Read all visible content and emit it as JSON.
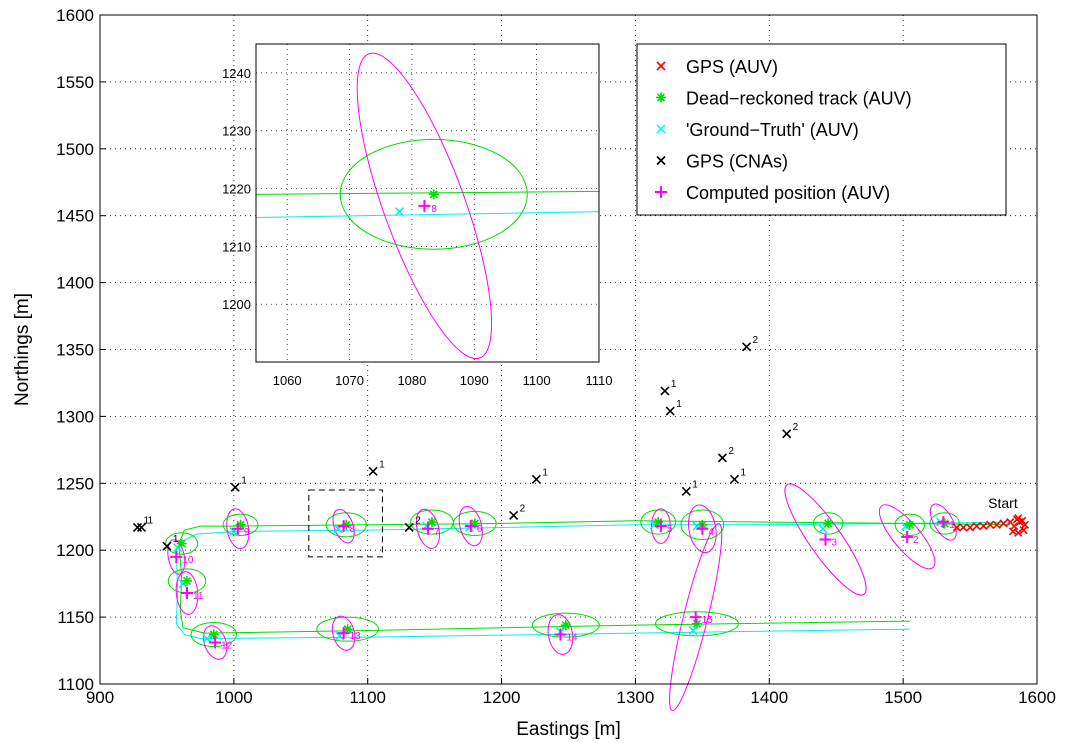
{
  "chart_data": {
    "type": "scatter",
    "title": "",
    "xlabel": "Eastings [m]",
    "ylabel": "Northings [m]",
    "xlim": [
      900,
      1600
    ],
    "ylim": [
      1100,
      1600
    ],
    "xticks": [
      900,
      1000,
      1100,
      1200,
      1300,
      1400,
      1500,
      1600
    ],
    "yticks": [
      1100,
      1150,
      1200,
      1250,
      1300,
      1350,
      1400,
      1450,
      1500,
      1550,
      1600
    ],
    "grid": true,
    "legend_position": "top-right",
    "legend": [
      {
        "label": "GPS (AUV)",
        "marker": "x",
        "color": "#ff0000"
      },
      {
        "label": "Dead−reckoned track (AUV)",
        "marker": "asterisk",
        "color": "#00dd00"
      },
      {
        "label": "'Ground−Truth' (AUV)",
        "marker": "x",
        "color": "#00ffff"
      },
      {
        "label": "GPS (CNAs)",
        "marker": "x",
        "color": "#000000"
      },
      {
        "label": "Computed position (AUV)",
        "marker": "+",
        "color": "#ff00ff"
      }
    ],
    "start_label": "Start",
    "start_point": [
      1588,
      1218
    ],
    "gps_auv": [
      [
        1586,
        1224
      ],
      [
        1589,
        1222
      ],
      [
        1591,
        1219
      ],
      [
        1590,
        1215
      ],
      [
        1586,
        1213
      ],
      [
        1582,
        1214
      ],
      [
        1583,
        1218
      ],
      [
        1587,
        1221
      ],
      [
        1585,
        1223
      ],
      [
        1580,
        1221
      ],
      [
        1575,
        1220
      ],
      [
        1570,
        1219
      ],
      [
        1565,
        1219
      ],
      [
        1560,
        1218
      ],
      [
        1555,
        1218
      ],
      [
        1550,
        1217
      ],
      [
        1545,
        1217
      ],
      [
        1540,
        1217
      ]
    ],
    "dead_reckoned_track": [
      [
        1580,
        1219
      ],
      [
        1500,
        1220
      ],
      [
        1400,
        1221
      ],
      [
        1300,
        1222
      ],
      [
        1200,
        1220
      ],
      [
        1100,
        1219
      ],
      [
        1000,
        1218
      ],
      [
        975,
        1218
      ],
      [
        963,
        1215
      ],
      [
        959,
        1205
      ],
      [
        961,
        1180
      ],
      [
        960,
        1155
      ],
      [
        962,
        1142
      ],
      [
        978,
        1138
      ],
      [
        1100,
        1140
      ],
      [
        1300,
        1144
      ],
      [
        1505,
        1147
      ]
    ],
    "ground_truth_track": [
      [
        1580,
        1221
      ],
      [
        1500,
        1220
      ],
      [
        1400,
        1219
      ],
      [
        1300,
        1219
      ],
      [
        1200,
        1217
      ],
      [
        1100,
        1215
      ],
      [
        1000,
        1214
      ],
      [
        972,
        1212
      ],
      [
        960,
        1206
      ],
      [
        957,
        1200
      ],
      [
        958,
        1170
      ],
      [
        957,
        1145
      ],
      [
        963,
        1137
      ],
      [
        975,
        1134
      ],
      [
        1100,
        1135
      ],
      [
        1300,
        1138
      ],
      [
        1505,
        1141
      ]
    ],
    "dead_reckoned_points": [
      {
        "x": 1531,
        "y": 1220
      },
      {
        "x": 1505,
        "y": 1219
      },
      {
        "x": 1444,
        "y": 1220
      },
      {
        "x": 1350,
        "y": 1219
      },
      {
        "x": 1317,
        "y": 1221
      },
      {
        "x": 1180,
        "y": 1220
      },
      {
        "x": 1148,
        "y": 1221
      },
      {
        "x": 1084,
        "y": 1219
      },
      {
        "x": 1005,
        "y": 1219
      },
      {
        "x": 961,
        "y": 1205
      },
      {
        "x": 965,
        "y": 1177
      },
      {
        "x": 985,
        "y": 1137
      },
      {
        "x": 1085,
        "y": 1141
      },
      {
        "x": 1248,
        "y": 1144
      },
      {
        "x": 1346,
        "y": 1145
      }
    ],
    "ground_truth_points": [
      {
        "x": 1528,
        "y": 1221
      },
      {
        "x": 1502,
        "y": 1218
      },
      {
        "x": 1440,
        "y": 1216
      },
      {
        "x": 1346,
        "y": 1218
      },
      {
        "x": 1314,
        "y": 1219
      },
      {
        "x": 1176,
        "y": 1217
      },
      {
        "x": 1144,
        "y": 1218
      },
      {
        "x": 1078,
        "y": 1216
      },
      {
        "x": 1000,
        "y": 1214
      },
      {
        "x": 958,
        "y": 1202
      },
      {
        "x": 962,
        "y": 1175
      },
      {
        "x": 980,
        "y": 1134
      },
      {
        "x": 1079,
        "y": 1136
      },
      {
        "x": 1244,
        "y": 1139
      },
      {
        "x": 1343,
        "y": 1140
      }
    ],
    "computed_positions": [
      {
        "x": 1530,
        "y": 1221,
        "label": "1"
      },
      {
        "x": 1503,
        "y": 1210,
        "label": "2"
      },
      {
        "x": 1442,
        "y": 1208,
        "label": "3"
      },
      {
        "x": 1350,
        "y": 1216,
        "label": "4"
      },
      {
        "x": 1319,
        "y": 1218,
        "label": "5"
      },
      {
        "x": 1177,
        "y": 1218,
        "label": "6"
      },
      {
        "x": 1145,
        "y": 1216,
        "label": "7"
      },
      {
        "x": 1082,
        "y": 1218,
        "label": "8"
      },
      {
        "x": 1003,
        "y": 1216,
        "label": "9"
      },
      {
        "x": 957,
        "y": 1195,
        "label": "10"
      },
      {
        "x": 965,
        "y": 1168,
        "label": "11"
      },
      {
        "x": 986,
        "y": 1131,
        "label": "12"
      },
      {
        "x": 1082,
        "y": 1138,
        "label": "13"
      },
      {
        "x": 1244,
        "y": 1137,
        "label": "14"
      },
      {
        "x": 1345,
        "y": 1150,
        "label": "15"
      }
    ],
    "gps_cnas": [
      {
        "x": 928,
        "y": 1217,
        "label": "1"
      },
      {
        "x": 931,
        "y": 1217,
        "label": "1"
      },
      {
        "x": 950,
        "y": 1203,
        "label": "1"
      },
      {
        "x": 1001,
        "y": 1247,
        "label": "1"
      },
      {
        "x": 1104,
        "y": 1259,
        "label": "1"
      },
      {
        "x": 1131,
        "y": 1217,
        "label": "2"
      },
      {
        "x": 1209,
        "y": 1226,
        "label": "2"
      },
      {
        "x": 1226,
        "y": 1253,
        "label": "1"
      },
      {
        "x": 1322,
        "y": 1319,
        "label": "1"
      },
      {
        "x": 1326,
        "y": 1304,
        "label": "1"
      },
      {
        "x": 1338,
        "y": 1244,
        "label": "1"
      },
      {
        "x": 1365,
        "y": 1269,
        "label": "2"
      },
      {
        "x": 1374,
        "y": 1253,
        "label": "1"
      },
      {
        "x": 1383,
        "y": 1352,
        "label": "2"
      },
      {
        "x": 1413,
        "y": 1287,
        "label": "2"
      }
    ],
    "uncertainty_ellipses_dead_reckoned": [
      {
        "cx": 1531,
        "cy": 1220,
        "rx": 11,
        "ry": 8
      },
      {
        "cx": 1505,
        "cy": 1219,
        "rx": 11,
        "ry": 8
      },
      {
        "cx": 1444,
        "cy": 1220,
        "rx": 11,
        "ry": 8
      },
      {
        "cx": 1350,
        "cy": 1219,
        "rx": 16,
        "ry": 11
      },
      {
        "cx": 1317,
        "cy": 1221,
        "rx": 13,
        "ry": 9
      },
      {
        "cx": 1180,
        "cy": 1220,
        "rx": 16,
        "ry": 9
      },
      {
        "cx": 1148,
        "cy": 1221,
        "rx": 16,
        "ry": 9
      },
      {
        "cx": 1084,
        "cy": 1219,
        "rx": 15,
        "ry": 9
      },
      {
        "cx": 1005,
        "cy": 1219,
        "rx": 13,
        "ry": 8
      },
      {
        "cx": 961,
        "cy": 1205,
        "rx": 12,
        "ry": 8
      },
      {
        "cx": 965,
        "cy": 1177,
        "rx": 14,
        "ry": 9
      },
      {
        "cx": 985,
        "cy": 1137,
        "rx": 17,
        "ry": 9
      },
      {
        "cx": 1085,
        "cy": 1141,
        "rx": 23,
        "ry": 9
      },
      {
        "cx": 1248,
        "cy": 1144,
        "rx": 25,
        "ry": 9
      },
      {
        "cx": 1346,
        "cy": 1145,
        "rx": 31,
        "ry": 9
      }
    ],
    "uncertainty_ellipses_computed": [
      {
        "cx": 1530,
        "cy": 1221,
        "rx": 7,
        "ry": 15,
        "tilt": -30
      },
      {
        "cx": 1503,
        "cy": 1210,
        "rx": 10,
        "ry": 30,
        "tilt": -40
      },
      {
        "cx": 1442,
        "cy": 1208,
        "rx": 12,
        "ry": 50,
        "tilt": -35
      },
      {
        "cx": 1350,
        "cy": 1216,
        "rx": 10,
        "ry": 18,
        "tilt": -10
      },
      {
        "cx": 1319,
        "cy": 1218,
        "rx": 7,
        "ry": 13,
        "tilt": 0
      },
      {
        "cx": 1177,
        "cy": 1218,
        "rx": 8,
        "ry": 15,
        "tilt": -15
      },
      {
        "cx": 1145,
        "cy": 1216,
        "rx": 8,
        "ry": 15,
        "tilt": -15
      },
      {
        "cx": 1082,
        "cy": 1218,
        "rx": 7,
        "ry": 13,
        "tilt": -20
      },
      {
        "cx": 1003,
        "cy": 1216,
        "rx": 8,
        "ry": 15,
        "tilt": -10
      },
      {
        "cx": 957,
        "cy": 1195,
        "rx": 6,
        "ry": 13,
        "tilt": -10
      },
      {
        "cx": 965,
        "cy": 1168,
        "rx": 8,
        "ry": 16,
        "tilt": -5
      },
      {
        "cx": 986,
        "cy": 1131,
        "rx": 8,
        "ry": 13,
        "tilt": -20
      },
      {
        "cx": 1082,
        "cy": 1138,
        "rx": 8,
        "ry": 13,
        "tilt": -15
      },
      {
        "cx": 1244,
        "cy": 1137,
        "rx": 9,
        "ry": 15,
        "tilt": -10
      },
      {
        "cx": 1345,
        "cy": 1150,
        "rx": 9,
        "ry": 72,
        "tilt": 14
      }
    ],
    "zoom_box": {
      "x": [
        1056,
        1111
      ],
      "y": [
        1195,
        1245
      ]
    },
    "inset": {
      "xlim": [
        1055,
        1110
      ],
      "ylim": [
        1190,
        1245
      ],
      "xticks": [
        1060,
        1070,
        1080,
        1090,
        1100,
        1110
      ],
      "yticks": [
        1200,
        1210,
        1220,
        1230,
        1240
      ],
      "dead_reckoned_track": [
        [
          1055,
          1219
        ],
        [
          1110,
          1219.5
        ]
      ],
      "ground_truth_track": [
        [
          1055,
          1215
        ],
        [
          1110,
          1216
        ]
      ],
      "dead_reckoned_point": {
        "x": 1083.5,
        "y": 1219
      },
      "ground_truth_point": {
        "x": 1078,
        "y": 1216
      },
      "computed_position": {
        "x": 1082,
        "y": 1217,
        "label": "8"
      },
      "dead_reckoned_ellipse": {
        "cx": 1083.5,
        "cy": 1219,
        "rx": 15,
        "ry": 9.5
      },
      "computed_ellipse": {
        "cx": 1082,
        "cy": 1217,
        "rx": 6.5,
        "ry": 28,
        "tilt": -20
      }
    },
    "colors": {
      "gps_auv": "#ff0000",
      "dead_reckoned": "#00dd00",
      "ground_truth": "#00eeee",
      "cna": "#000000",
      "computed": "#ff00ff"
    }
  }
}
